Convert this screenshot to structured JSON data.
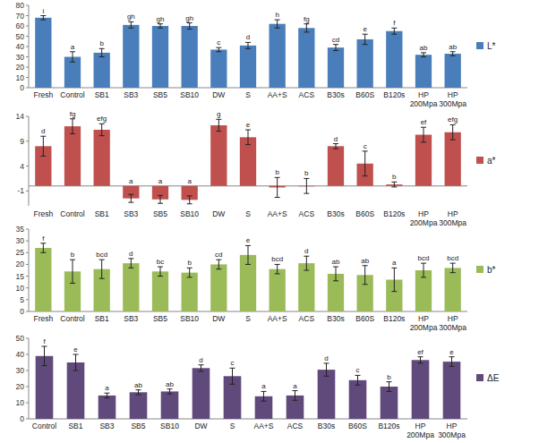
{
  "chart_data": [
    {
      "type": "bar",
      "categories": [
        "Fresh",
        "Control",
        "SB1",
        "SB3",
        "SB5",
        "SB10",
        "DW",
        "S",
        "AA+S",
        "ACS",
        "B30s",
        "B60S",
        "B120s",
        "HP 200Mpa",
        "HP 300Mpa"
      ],
      "series": [
        {
          "name": "L*",
          "color": "#4a7ebb",
          "values": [
            68,
            30,
            34,
            61,
            60,
            60,
            37,
            41,
            62,
            58,
            39,
            47,
            55,
            32,
            33
          ],
          "errors": [
            2,
            5,
            4,
            3,
            2,
            3,
            2,
            3,
            4,
            4,
            3,
            5,
            3,
            2,
            2
          ]
        }
      ],
      "annotations": [
        "i",
        "a",
        "b",
        "gh",
        "gh",
        "gh",
        "c",
        "d",
        "h",
        "fg",
        "cd",
        "e",
        "f",
        "ab",
        "ab"
      ],
      "ylim": [
        0,
        80
      ],
      "yticks": [
        0,
        10,
        20,
        30,
        40,
        50,
        60,
        70,
        80
      ],
      "grid": false,
      "legend": "right"
    },
    {
      "type": "bar",
      "categories": [
        "Fresh",
        "Control",
        "SB1",
        "SB3",
        "SB5",
        "SB10",
        "DW",
        "S",
        "AA+S",
        "ACS",
        "B30s",
        "B60S",
        "B120s",
        "HP 200Mpa",
        "HP 300Mpa"
      ],
      "series": [
        {
          "name": "a*",
          "color": "#c0504d",
          "values": [
            8,
            12,
            11.3,
            -2.5,
            -2.7,
            -2.8,
            12.2,
            9.8,
            -0.3,
            0,
            8,
            4.5,
            0.3,
            10.3,
            10.8
          ],
          "errors": [
            2,
            1.5,
            1.2,
            0.8,
            0.8,
            0.8,
            1.2,
            1.5,
            2,
            1.5,
            0.5,
            2.5,
            0.5,
            1.5,
            1.5
          ]
        }
      ],
      "annotations": [
        "d",
        "fg",
        "efg",
        "a",
        "a",
        "a",
        "g",
        "e",
        "b",
        "b",
        "d",
        "c",
        "b",
        "ef",
        "efg"
      ],
      "ylim": [
        -4,
        14
      ],
      "yticks": [
        -1,
        4,
        9,
        14
      ],
      "grid": false,
      "legend": "right"
    },
    {
      "type": "bar",
      "categories": [
        "Fresh",
        "Control",
        "SB1",
        "SB3",
        "SB5",
        "SB10",
        "DW",
        "S",
        "AA+S",
        "ACS",
        "B30s",
        "B60S",
        "B120s",
        "HP 200Mpa",
        "HP 300Mpa"
      ],
      "series": [
        {
          "name": "b*",
          "color": "#9bbb59",
          "values": [
            27,
            17,
            18,
            20.5,
            17,
            16.5,
            20,
            24,
            18,
            20.5,
            16,
            15.5,
            13.5,
            17.5,
            18.5
          ],
          "errors": [
            2,
            5,
            4,
            2,
            2,
            2,
            2,
            4,
            2,
            3,
            3,
            4,
            5,
            3,
            2
          ]
        }
      ],
      "annotations": [
        "f",
        "b",
        "bcd",
        "d",
        "bc",
        "b",
        "cd",
        "e",
        "bcd",
        "d",
        "ab",
        "ab",
        "a",
        "bcd",
        "bcd"
      ],
      "ylim": [
        0,
        35
      ],
      "yticks": [
        0,
        5,
        10,
        15,
        20,
        25,
        30,
        35
      ],
      "grid": false,
      "legend": "right"
    },
    {
      "type": "bar",
      "categories": [
        "Control",
        "SB1",
        "SB3",
        "SB5",
        "SB10",
        "DW",
        "S",
        "AA+S",
        "ACS",
        "B30s",
        "B60S",
        "B120s",
        "HP 200Mpa",
        "HP 300Mpa"
      ],
      "series": [
        {
          "name": "ΔE",
          "color": "#604a7b",
          "values": [
            39,
            35,
            14.5,
            16.5,
            17,
            31.5,
            26.5,
            14,
            14.5,
            30.5,
            24,
            20,
            36.5,
            35.5
          ],
          "errors": [
            6,
            5,
            1.5,
            1.5,
            1.5,
            2,
            5,
            3,
            3,
            4,
            3,
            3,
            2,
            3
          ]
        }
      ],
      "annotations": [
        "f",
        "e",
        "a",
        "ab",
        "ab",
        "d",
        "c",
        "a",
        "a",
        "d",
        "c",
        "b",
        "ef",
        "e"
      ],
      "ylim": [
        0,
        50
      ],
      "yticks": [
        0,
        10,
        20,
        30,
        40,
        50
      ],
      "grid": false,
      "legend": "right"
    }
  ]
}
